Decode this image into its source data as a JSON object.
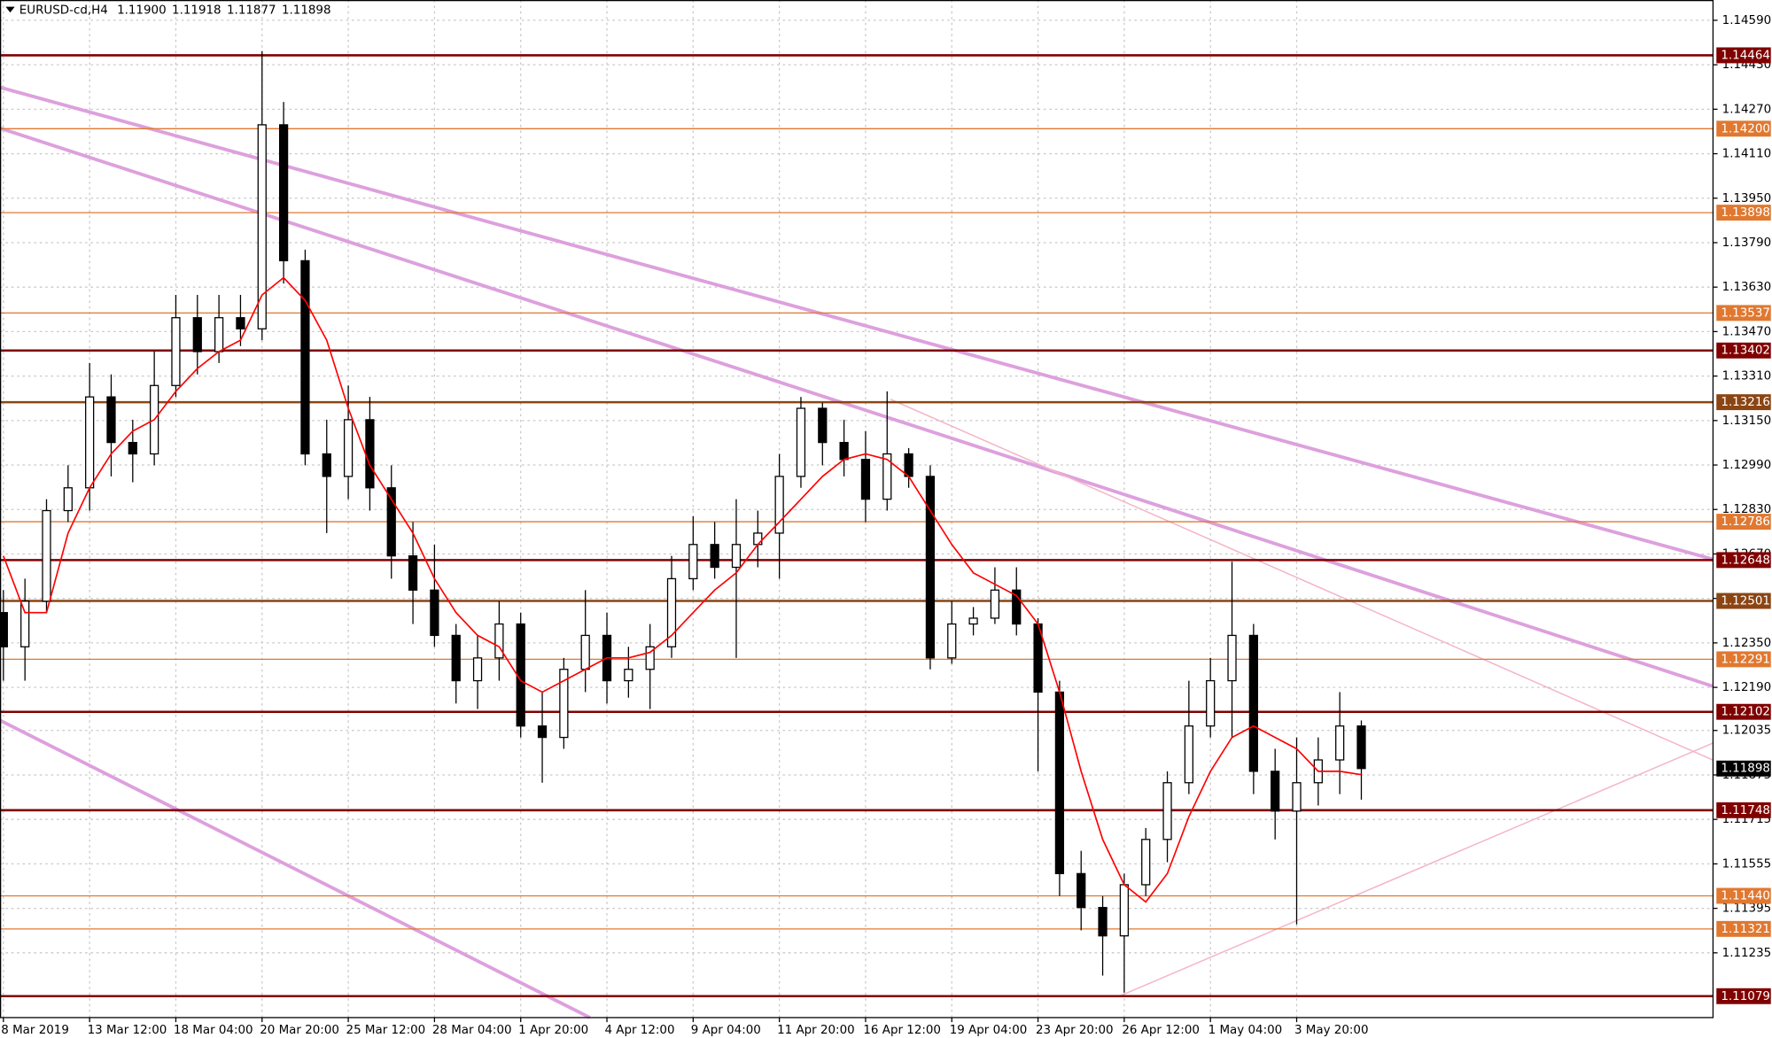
{
  "chart_data": {
    "type": "candlestick",
    "symbol": "EURUSD-cd,H4",
    "header_values": [
      "1.11900",
      "1.11918",
      "1.11877",
      "1.11898"
    ],
    "categories": [
      "8 Mar 2019",
      null,
      null,
      null,
      "13 Mar 12:00",
      null,
      null,
      null,
      "18 Mar 04:00",
      null,
      null,
      null,
      "20 Mar 20:00",
      null,
      null,
      null,
      "25 Mar 12:00",
      null,
      null,
      null,
      "28 Mar 04:00",
      null,
      null,
      null,
      "1 Apr 20:00",
      null,
      null,
      null,
      "4 Apr 12:00",
      null,
      null,
      null,
      "9 Apr 04:00",
      null,
      null,
      null,
      "11 Apr 20:00",
      null,
      null,
      null,
      "16 Apr 12:00",
      null,
      null,
      null,
      "19 Apr 04:00",
      null,
      null,
      null,
      "23 Apr 20:00",
      null,
      null,
      null,
      "26 Apr 12:00",
      null,
      null,
      null,
      "1 May 04:00",
      null,
      null,
      null,
      "3 May 20:00",
      null,
      null,
      null
    ],
    "open": [
      1.12459,
      1.12336,
      1.125,
      1.12826,
      1.12908,
      1.13235,
      1.13071,
      1.1303,
      1.13276,
      1.1352,
      1.13398,
      1.1352,
      1.1348,
      1.14214,
      1.13725,
      1.1303,
      1.12949,
      1.13153,
      1.12908,
      1.12663,
      1.1254,
      1.12377,
      1.12214,
      1.12296,
      1.12418,
      1.12051,
      1.1201,
      1.12255,
      1.12377,
      1.12214,
      1.12255,
      1.12336,
      1.12581,
      1.12704,
      1.12622,
      1.12704,
      1.12745,
      1.12949,
      1.13194,
      1.13071,
      1.1301,
      1.12867,
      1.1303,
      1.12949,
      1.12296,
      1.12418,
      1.12439,
      1.1254,
      1.12418,
      1.12173,
      1.1152,
      1.11398,
      1.11296,
      1.1148,
      1.11643,
      1.11847,
      1.12051,
      1.12214,
      1.12377,
      1.11888,
      1.11745,
      1.11847,
      1.11929,
      1.12051
    ],
    "high": [
      1.1254,
      1.12581,
      1.12867,
      1.12989,
      1.13357,
      1.13316,
      1.13153,
      1.13398,
      1.13602,
      1.13602,
      1.13602,
      1.13602,
      1.14479,
      1.14296,
      1.13765,
      1.13153,
      1.13276,
      1.13235,
      1.12989,
      1.12785,
      1.12704,
      1.12418,
      1.12377,
      1.125,
      1.12459,
      1.12173,
      1.12296,
      1.1254,
      1.12459,
      1.12336,
      1.12418,
      1.12663,
      1.12806,
      1.12785,
      1.12867,
      1.12826,
      1.1303,
      1.13235,
      1.13214,
      1.13153,
      1.13112,
      1.13255,
      1.13051,
      1.12989,
      1.125,
      1.12479,
      1.12622,
      1.12622,
      1.12439,
      1.12214,
      1.11602,
      1.11439,
      1.1152,
      1.11684,
      1.11888,
      1.12214,
      1.12296,
      1.12642,
      1.12418,
      1.11969,
      1.1201,
      1.1201,
      1.12173,
      1.12071
    ],
    "low": [
      1.12214,
      1.12214,
      1.12459,
      1.12785,
      1.12826,
      1.12949,
      1.12928,
      1.12989,
      1.13235,
      1.13316,
      1.13357,
      1.13418,
      1.13439,
      1.13643,
      1.12989,
      1.12745,
      1.12867,
      1.12826,
      1.12581,
      1.12418,
      1.12336,
      1.12132,
      1.12112,
      1.12214,
      1.1201,
      1.11847,
      1.11969,
      1.12173,
      1.12132,
      1.12153,
      1.12112,
      1.12296,
      1.1254,
      1.12581,
      1.12296,
      1.12622,
      1.12581,
      1.12908,
      1.12989,
      1.12949,
      1.12785,
      1.12826,
      1.12908,
      1.12255,
      1.12275,
      1.12377,
      1.12418,
      1.12377,
      1.11888,
      1.11439,
      1.11316,
      1.11153,
      1.11092,
      1.11439,
      1.11561,
      1.11806,
      1.1201,
      1.1201,
      1.11806,
      1.11643,
      1.11337,
      1.11765,
      1.11806,
      1.11786
    ],
    "close": [
      1.12336,
      1.125,
      1.12826,
      1.12908,
      1.13235,
      1.13071,
      1.1303,
      1.13276,
      1.1352,
      1.13398,
      1.1352,
      1.1348,
      1.14214,
      1.13725,
      1.1303,
      1.12949,
      1.13153,
      1.12908,
      1.12663,
      1.1254,
      1.12377,
      1.12214,
      1.12296,
      1.12418,
      1.12051,
      1.1201,
      1.12255,
      1.12377,
      1.12214,
      1.12255,
      1.12336,
      1.12581,
      1.12704,
      1.12622,
      1.12704,
      1.12745,
      1.12949,
      1.13194,
      1.13071,
      1.1301,
      1.12867,
      1.1303,
      1.12949,
      1.12296,
      1.12418,
      1.12439,
      1.1254,
      1.12418,
      1.12173,
      1.1152,
      1.11398,
      1.11296,
      1.1148,
      1.11643,
      1.11847,
      1.12051,
      1.12214,
      1.12377,
      1.11888,
      1.11745,
      1.11847,
      1.11929,
      1.12051,
      1.11898
    ],
    "ma": {
      "color": "#ff0000",
      "values": [
        1.12663,
        1.12459,
        1.12459,
        1.12745,
        1.12908,
        1.1303,
        1.13112,
        1.13153,
        1.13255,
        1.13337,
        1.13398,
        1.13439,
        1.13602,
        1.13664,
        1.13582,
        1.13439,
        1.13194,
        1.12989,
        1.12867,
        1.12745,
        1.12581,
        1.12459,
        1.12377,
        1.12336,
        1.12214,
        1.12173,
        1.12214,
        1.12255,
        1.12296,
        1.12296,
        1.12316,
        1.12377,
        1.12459,
        1.1254,
        1.12602,
        1.12704,
        1.12785,
        1.12867,
        1.12949,
        1.1301,
        1.1303,
        1.1301,
        1.12949,
        1.12826,
        1.12704,
        1.12602,
        1.12561,
        1.1252,
        1.12418,
        1.12173,
        1.11888,
        1.11643,
        1.1148,
        1.11418,
        1.1152,
        1.11725,
        1.11888,
        1.1201,
        1.12051,
        1.1201,
        1.11969,
        1.11888,
        1.11888,
        1.11876
      ]
    },
    "bull_color": "#ffffff",
    "bear_color": "#000000",
    "ylim": [
      1.11002,
      1.14663
    ],
    "yticks": [
      {
        "value": 1.1459,
        "label": "1.14590"
      },
      {
        "value": 1.1443,
        "label": "1.14430"
      },
      {
        "value": 1.1427,
        "label": "1.14270"
      },
      {
        "value": 1.1411,
        "label": "1.14110"
      },
      {
        "value": 1.1395,
        "label": "1.13950"
      },
      {
        "value": 1.1379,
        "label": "1.13790"
      },
      {
        "value": 1.1363,
        "label": "1.13630"
      },
      {
        "value": 1.1347,
        "label": "1.13470"
      },
      {
        "value": 1.1331,
        "label": "1.13310"
      },
      {
        "value": 1.1315,
        "label": "1.13150"
      },
      {
        "value": 1.1299,
        "label": "1.12990"
      },
      {
        "value": 1.1283,
        "label": "1.12830"
      },
      {
        "value": 1.1267,
        "label": "1.12670"
      },
      {
        "value": 1.1251,
        "label": "1.12510"
      },
      {
        "value": 1.1235,
        "label": "1.12350"
      },
      {
        "value": 1.1219,
        "label": "1.12190"
      },
      {
        "value": 1.12035,
        "label": "1.12035"
      },
      {
        "value": 1.11875,
        "label": "1.11875"
      },
      {
        "value": 1.11715,
        "label": "1.11715"
      },
      {
        "value": 1.11555,
        "label": "1.11555"
      },
      {
        "value": 1.11395,
        "label": "1.11395"
      },
      {
        "value": 1.11235,
        "label": "1.11235"
      }
    ],
    "grid": true,
    "levels": [
      {
        "value": 1.14464,
        "label": "1.14464",
        "color": "#800000"
      },
      {
        "value": 1.142,
        "label": "1.14200",
        "color": "#e07830"
      },
      {
        "value": 1.13898,
        "label": "1.13898",
        "color": "#e07830"
      },
      {
        "value": 1.13537,
        "label": "1.13537",
        "color": "#e07830"
      },
      {
        "value": 1.13402,
        "label": "1.13402",
        "color": "#800000"
      },
      {
        "value": 1.13216,
        "label": "1.13216",
        "color": "#8b4513"
      },
      {
        "value": 1.12786,
        "label": "1.12786",
        "color": "#e07830"
      },
      {
        "value": 1.12648,
        "label": "1.12648",
        "color": "#800000"
      },
      {
        "value": 1.12501,
        "label": "1.12501",
        "color": "#8b4513"
      },
      {
        "value": 1.12291,
        "label": "1.12291",
        "color": "#e07830"
      },
      {
        "value": 1.12102,
        "label": "1.12102",
        "color": "#800000"
      },
      {
        "value": 1.11748,
        "label": "1.11748",
        "color": "#800000"
      },
      {
        "value": 1.1144,
        "label": "1.11440",
        "color": "#e07830"
      },
      {
        "value": 1.11321,
        "label": "1.11321",
        "color": "#e07830"
      },
      {
        "value": 1.11079,
        "label": "1.11079",
        "color": "#800000"
      }
    ],
    "last": {
      "value": 1.11898,
      "label": "1.11898"
    }
  }
}
